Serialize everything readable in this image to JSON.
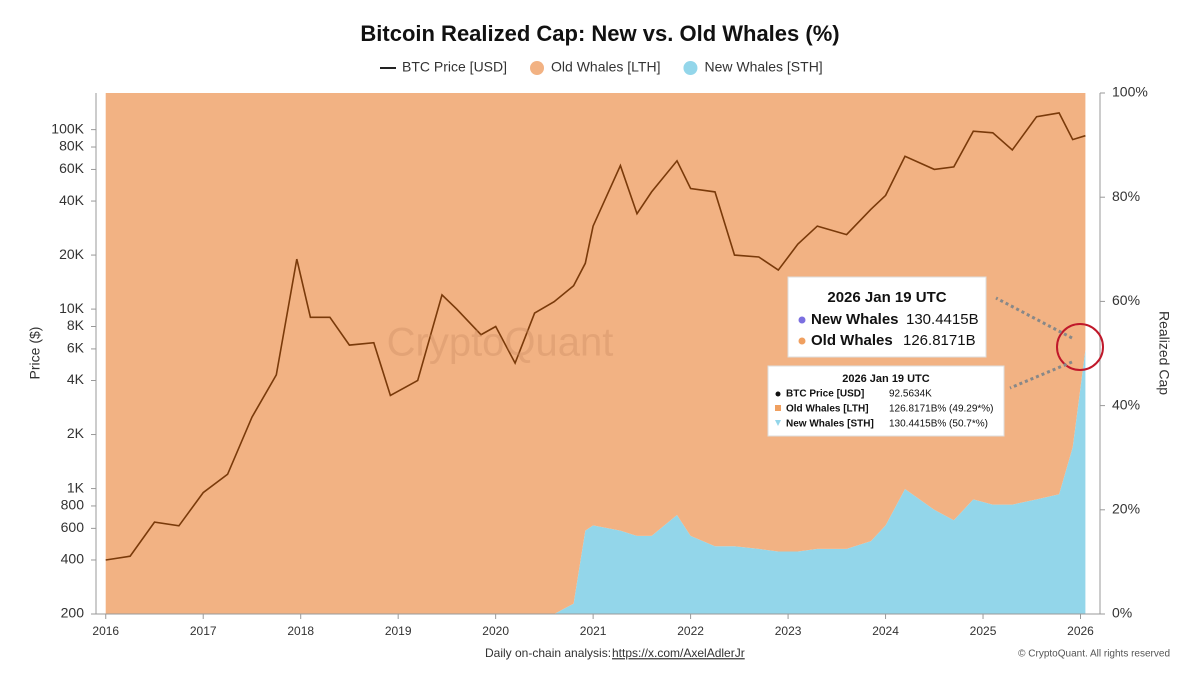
{
  "chart_data": {
    "type": "area-line",
    "title": "Bitcoin Realized Cap: New vs. Old Whales (%)",
    "y_label": "Price ($)",
    "y2_label": "Realized Cap",
    "watermark": "CryptoQuant",
    "log_y": true,
    "x": [
      2016.0,
      2016.25,
      2016.5,
      2016.75,
      2017.0,
      2017.25,
      2017.5,
      2017.75,
      2017.96,
      2018.1,
      2018.3,
      2018.5,
      2018.75,
      2018.92,
      2019.2,
      2019.45,
      2019.6,
      2019.85,
      2020.0,
      2020.2,
      2020.4,
      2020.6,
      2020.8,
      2020.92,
      2021.0,
      2021.28,
      2021.45,
      2021.6,
      2021.86,
      2022.0,
      2022.25,
      2022.45,
      2022.7,
      2022.9,
      2023.1,
      2023.3,
      2023.6,
      2023.85,
      2024.0,
      2024.2,
      2024.5,
      2024.7,
      2024.9,
      2025.1,
      2025.3,
      2025.55,
      2025.78,
      2025.92,
      2026.05
    ],
    "series": [
      {
        "name": "BTC Price [USD]",
        "color": "#7a3a0a",
        "axis": "y",
        "values": [
          400,
          420,
          650,
          620,
          950,
          1200,
          2500,
          4300,
          19000,
          9000,
          9000,
          6300,
          6500,
          3300,
          4000,
          12000,
          10000,
          7200,
          8000,
          5000,
          9500,
          11000,
          13500,
          18000,
          29000,
          63000,
          34000,
          45000,
          67000,
          47000,
          45000,
          20000,
          19500,
          16500,
          23000,
          29000,
          26000,
          36000,
          43000,
          71000,
          60000,
          62000,
          98000,
          96000,
          77000,
          118000,
          124000,
          88000,
          92563.4
        ]
      },
      {
        "name": "Old Whales [LTH]",
        "color": "#f2b283",
        "axis": "y2",
        "values": [
          100,
          100,
          100,
          100,
          100,
          100,
          100,
          100,
          100,
          100,
          100,
          100,
          100,
          100,
          100,
          100,
          100,
          100,
          100,
          100,
          100,
          100,
          98,
          84,
          83,
          84,
          85,
          85,
          81,
          85,
          87,
          87,
          87.5,
          88,
          88,
          87.5,
          87.5,
          86,
          83,
          76,
          80,
          82,
          78,
          79,
          79,
          78,
          77,
          68,
          49.29
        ]
      },
      {
        "name": "New Whales [STH]",
        "color": "#93d6ea",
        "axis": "y2",
        "values": [
          0,
          0,
          0,
          0,
          0,
          0,
          0,
          0,
          0,
          0,
          0,
          0,
          0,
          0,
          0,
          0,
          0,
          0,
          0,
          0,
          0,
          0,
          2,
          16,
          17,
          16,
          15,
          15,
          19,
          15,
          13,
          13,
          12.5,
          12,
          12,
          12.5,
          12.5,
          14,
          17,
          24,
          20,
          18,
          22,
          21,
          21,
          22,
          23,
          32,
          50.71
        ]
      }
    ],
    "xlim": [
      2015.9,
      2026.2
    ],
    "xticks": [
      2016,
      2017,
      2018,
      2019,
      2020,
      2021,
      2022,
      2023,
      2024,
      2025,
      2026
    ],
    "ylim": [
      200,
      160000
    ],
    "yticks": [
      200,
      400,
      600,
      800,
      {
        "value": 1000,
        "label": "1K"
      },
      {
        "value": 2000,
        "label": "2K"
      },
      {
        "value": 4000,
        "label": "4K"
      },
      {
        "value": 6000,
        "label": "6K"
      },
      {
        "value": 8000,
        "label": "8K"
      },
      {
        "value": 10000,
        "label": "10K"
      },
      {
        "value": 20000,
        "label": "20K"
      },
      {
        "value": 40000,
        "label": "40K"
      },
      {
        "value": 60000,
        "label": "60K"
      },
      {
        "value": 80000,
        "label": "80K"
      },
      {
        "value": 100000,
        "label": "100K"
      }
    ],
    "y2lim": [
      0,
      100
    ],
    "y2ticks": [
      {
        "value": 0,
        "label": "0%"
      },
      {
        "value": 20,
        "label": "20%"
      },
      {
        "value": 40,
        "label": "40%"
      },
      {
        "value": 60,
        "label": "60%"
      },
      {
        "value": 80,
        "label": "80%"
      },
      {
        "value": 100,
        "label": "100%"
      }
    ],
    "annotations": {
      "callout": {
        "title": "2026 Jan 19 UTC",
        "rows": [
          {
            "label": "New Whales",
            "value": "130.4415B"
          },
          {
            "label": "Old Whales",
            "value": "126.8171B"
          }
        ]
      },
      "tooltip": {
        "title": "2026 Jan 19 UTC",
        "rows": [
          {
            "label": "BTC Price [USD]",
            "value": "92.5634K"
          },
          {
            "label": "Old Whales [LTH]",
            "value": "126.8171B% (49.29*%)"
          },
          {
            "label": "New Whales [STH]",
            "value": "130.4415B% (50.7*%)"
          }
        ]
      }
    },
    "footer": {
      "text": "Daily on-chain analysis:",
      "link": "https://x.com/AxelAdlerJr",
      "copyright": "© CryptoQuant. All rights reserved"
    }
  }
}
